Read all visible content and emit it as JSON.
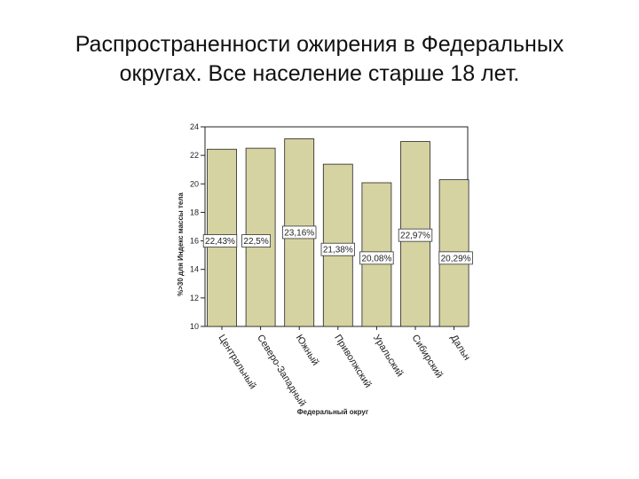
{
  "slide": {
    "title_line1": "Распространенности ожирения в Федеральных",
    "title_line2": "округах. Все население старше 18 лет."
  },
  "chart_data": {
    "type": "bar",
    "xlabel": "Федеральный округ",
    "ylabel": "%>30 для Индекс массы тела",
    "ylim": [
      10,
      24
    ],
    "yticks": [
      10,
      12,
      14,
      16,
      18,
      20,
      22,
      24
    ],
    "categories": [
      "Центральный",
      "Северо-Западный",
      "Южный",
      "Приволжский",
      "Уральский",
      "Сибирский",
      "Дальн"
    ],
    "values": [
      22.43,
      22.5,
      23.16,
      21.38,
      20.08,
      22.97,
      20.29
    ],
    "data_labels": [
      "22,43%",
      "22,5%",
      "23,16%",
      "21,38%",
      "20,08%",
      "22,97%",
      "20,29%"
    ],
    "grid": false,
    "bar_color": "#d6d3a2",
    "bar_edge_color": "#222222"
  }
}
